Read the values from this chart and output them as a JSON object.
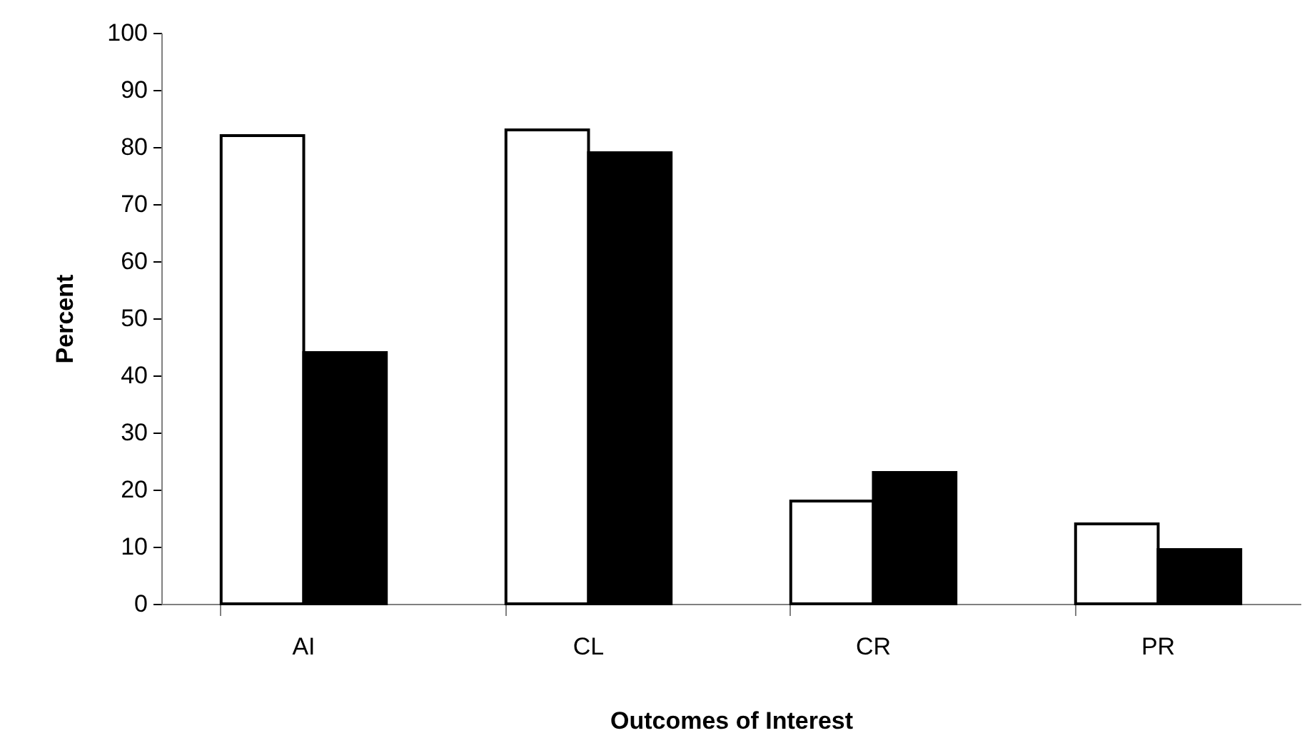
{
  "chart_data": {
    "type": "bar",
    "xlabel": "Outcomes of Interest",
    "ylabel": "Percent",
    "categories": [
      "AI",
      "CL",
      "CR",
      "PR"
    ],
    "series": [
      {
        "color": "#ffffff",
        "values": [
          82,
          83,
          18,
          14
        ]
      },
      {
        "color": "#000000",
        "values": [
          44,
          79,
          23,
          9.5
        ]
      }
    ],
    "ylim": [
      0,
      100
    ],
    "yticks": [
      0,
      10,
      20,
      30,
      40,
      50,
      60,
      70,
      80,
      90,
      100
    ],
    "grid": false,
    "legend": false
  }
}
